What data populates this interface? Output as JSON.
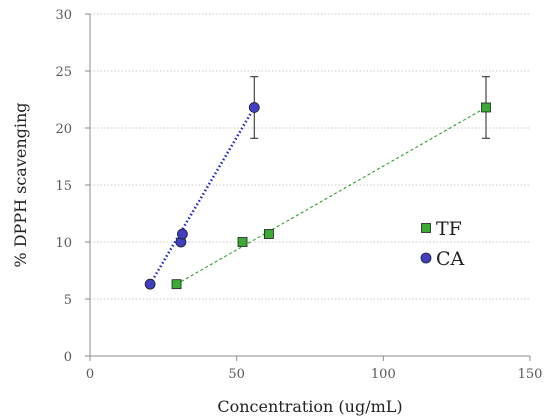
{
  "chart_data": {
    "type": "scatter",
    "xlabel": "Concentration (ug/mL)",
    "ylabel": "% DPPH scavenging",
    "xlim": [
      0,
      150
    ],
    "ylim": [
      0,
      30
    ],
    "x_ticks": [
      0,
      50,
      100,
      150
    ],
    "y_ticks": [
      0,
      5,
      10,
      15,
      20,
      25,
      30
    ],
    "grid": "horizontal dotted",
    "legend_position": "right",
    "series": [
      {
        "name": "TF",
        "marker": "square",
        "color": "#3aaa35",
        "line_color": "#2e9e2a",
        "line_style": "dashed",
        "points": [
          {
            "x": 29.5,
            "y": 6.3
          },
          {
            "x": 52,
            "y": 10
          },
          {
            "x": 61,
            "y": 10.7
          },
          {
            "x": 135,
            "y": 21.8,
            "error": 2.7
          }
        ]
      },
      {
        "name": "CA",
        "marker": "circle",
        "color": "#3f3fbf",
        "line_color": "#2020c8",
        "line_style": "dotted",
        "points": [
          {
            "x": 20.5,
            "y": 6.3
          },
          {
            "x": 31,
            "y": 10
          },
          {
            "x": 31.5,
            "y": 10.7
          },
          {
            "x": 56,
            "y": 21.8,
            "error": 2.7
          }
        ]
      }
    ]
  }
}
